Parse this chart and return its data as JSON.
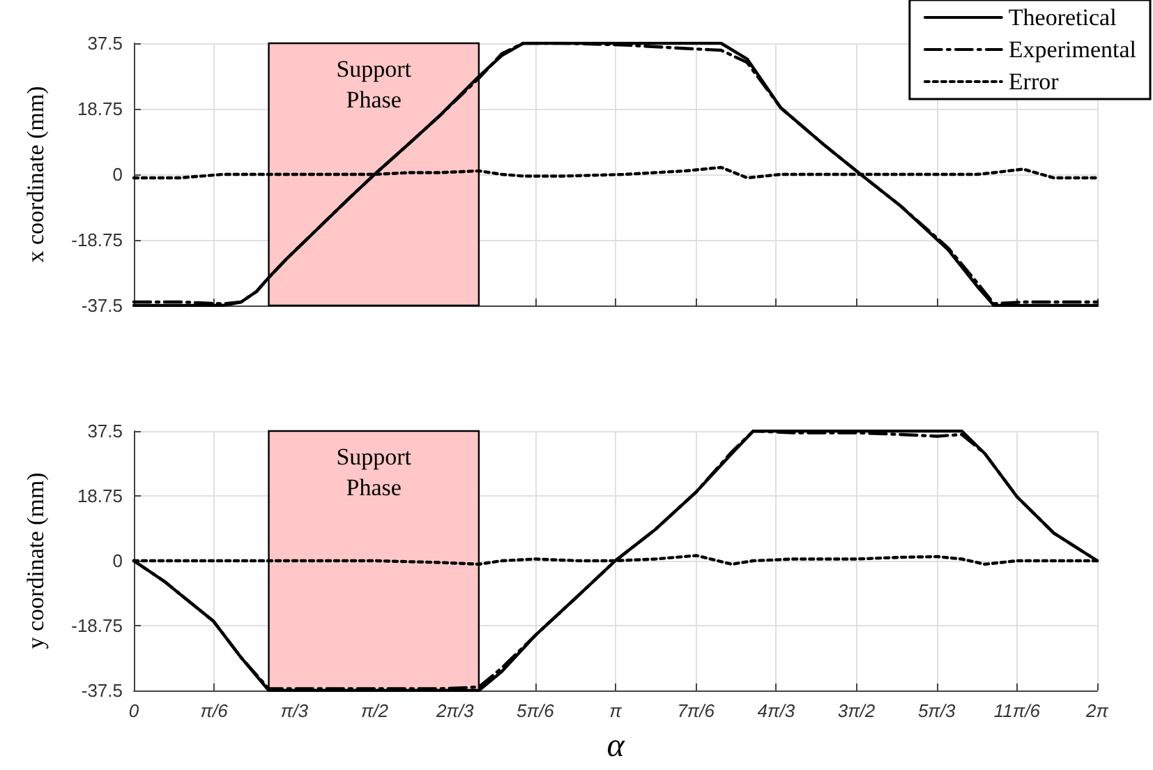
{
  "chart_data": [
    {
      "type": "line",
      "ylabel": "x coordinate (mm)",
      "xlim": [
        0,
        6.2832
      ],
      "ylim": [
        -37.5,
        37.5
      ],
      "yticks": [
        -37.5,
        -18.75,
        0,
        18.75,
        37.5
      ],
      "xticks": [
        {
          "value": 0,
          "label": null
        },
        {
          "value": 0.5236,
          "label": null
        },
        {
          "value": 1.0472,
          "label": null
        },
        {
          "value": 1.5708,
          "label": null
        },
        {
          "value": 2.0944,
          "label": null
        },
        {
          "value": 2.618,
          "label": null
        },
        {
          "value": 3.1416,
          "label": null
        },
        {
          "value": 3.6652,
          "label": null
        },
        {
          "value": 4.1888,
          "label": null
        },
        {
          "value": 4.7124,
          "label": null
        },
        {
          "value": 5.236,
          "label": null
        },
        {
          "value": 5.7596,
          "label": null
        },
        {
          "value": 6.2832,
          "label": null
        }
      ],
      "tick_labels": "y",
      "grid": true,
      "legend": "top right",
      "marker": "none",
      "bands": [
        {
          "axis": "x",
          "from": 0.88,
          "to": 2.25,
          "label": "Support Phase",
          "color": "#ffc7c7"
        }
      ],
      "x": [
        0,
        0.3,
        0.58,
        0.7,
        0.8,
        0.88,
        1.0,
        1.2,
        1.4,
        1.57,
        1.8,
        2.0,
        2.25,
        2.4,
        2.54,
        2.8,
        3.2,
        3.6,
        3.83,
        4.0,
        4.22,
        4.5,
        4.74,
        5.0,
        5.31,
        5.5,
        5.61,
        5.8,
        6.0,
        6.2832
      ],
      "series": [
        {
          "name": "Theoretical",
          "color": "#000000",
          "line_style": "solid",
          "values": [
            -37.5,
            -37.5,
            -37.5,
            -36.5,
            -33.5,
            -29.5,
            -24,
            -15.5,
            -7,
            0,
            9,
            17,
            28,
            34,
            37.5,
            37.5,
            37.5,
            37.5,
            37.5,
            33,
            19,
            8.5,
            0,
            -9,
            -21.5,
            -32,
            -37.5,
            -37.5,
            -37.5,
            -37.5
          ]
        },
        {
          "name": "Experimental",
          "color": "#000000",
          "line_style": "dashed",
          "values": [
            -36.5,
            -36.5,
            -37,
            -36.5,
            -33.5,
            -29.5,
            -24,
            -15.5,
            -7,
            0,
            9,
            17,
            27.5,
            34.5,
            37.5,
            37.5,
            37,
            36,
            35.5,
            32,
            19,
            8.5,
            0,
            -9,
            -21,
            -31,
            -37,
            -36.5,
            -36.5,
            -36.5
          ]
        },
        {
          "name": "Error",
          "color": "#000000",
          "line_style": "dotted",
          "values": [
            -1,
            -1,
            0,
            0,
            0,
            0,
            0,
            0,
            0,
            0,
            0.5,
            0.5,
            1,
            0,
            -0.5,
            -0.5,
            0,
            1,
            2,
            -1,
            0,
            0,
            0,
            0,
            0,
            0,
            0.5,
            1.5,
            -1,
            -1
          ]
        }
      ]
    },
    {
      "type": "line",
      "ylabel": "y coordinate (mm)",
      "xlabel": "α",
      "xlim": [
        0,
        6.2832
      ],
      "ylim": [
        -37.5,
        37.5
      ],
      "yticks": [
        -37.5,
        -18.75,
        0,
        18.75,
        37.5
      ],
      "xticks": [
        {
          "value": 0,
          "label": "0"
        },
        {
          "value": 0.5236,
          "label": "π/6"
        },
        {
          "value": 1.0472,
          "label": "π/3"
        },
        {
          "value": 1.5708,
          "label": "π/2"
        },
        {
          "value": 2.0944,
          "label": "2π/3"
        },
        {
          "value": 2.618,
          "label": "5π/6"
        },
        {
          "value": 3.1416,
          "label": "π"
        },
        {
          "value": 3.6652,
          "label": "7π/6"
        },
        {
          "value": 4.1888,
          "label": "4π/3"
        },
        {
          "value": 4.7124,
          "label": "3π/2"
        },
        {
          "value": 5.236,
          "label": "5π/3"
        },
        {
          "value": 5.7596,
          "label": "11π/6"
        },
        {
          "value": 6.2832,
          "label": "2π"
        }
      ],
      "grid": true,
      "marker": "none",
      "bands": [
        {
          "axis": "x",
          "from": 0.88,
          "to": 2.25,
          "label": "Support Phase",
          "color": "#ffc7c7"
        }
      ],
      "x": [
        0,
        0.2,
        0.52,
        0.7,
        0.88,
        1.2,
        1.57,
        2.0,
        2.25,
        2.4,
        2.62,
        2.9,
        3.14,
        3.4,
        3.67,
        3.9,
        4.04,
        4.3,
        4.71,
        5.0,
        5.24,
        5.4,
        5.55,
        5.76,
        6.0,
        6.2832
      ],
      "series": [
        {
          "color": "#000000",
          "line_style": "solid",
          "values": [
            0,
            -6,
            -17.5,
            -28,
            -37.5,
            -37.5,
            -37.5,
            -37.5,
            -37.5,
            -32,
            -21.5,
            -10,
            0,
            9,
            20,
            31,
            37.5,
            37.5,
            37.5,
            37.5,
            37.5,
            37.5,
            31,
            18.5,
            8,
            0
          ]
        },
        {
          "color": "#000000",
          "line_style": "dashed",
          "values": [
            0,
            -6,
            -17.5,
            -28,
            -37,
            -37,
            -37,
            -37,
            -36.5,
            -31,
            -21.5,
            -10,
            0,
            9,
            20,
            31.5,
            37.5,
            37,
            37,
            36.5,
            36,
            36.5,
            31,
            18.5,
            8,
            0
          ]
        },
        {
          "color": "#000000",
          "line_style": "dotted",
          "values": [
            0,
            0,
            0,
            0,
            0,
            0,
            0,
            -0.5,
            -1,
            0,
            0.5,
            0,
            0,
            0.5,
            1.5,
            -1,
            0,
            0.5,
            0.5,
            1,
            1.2,
            0.5,
            -1,
            0,
            0,
            0
          ]
        }
      ]
    }
  ]
}
